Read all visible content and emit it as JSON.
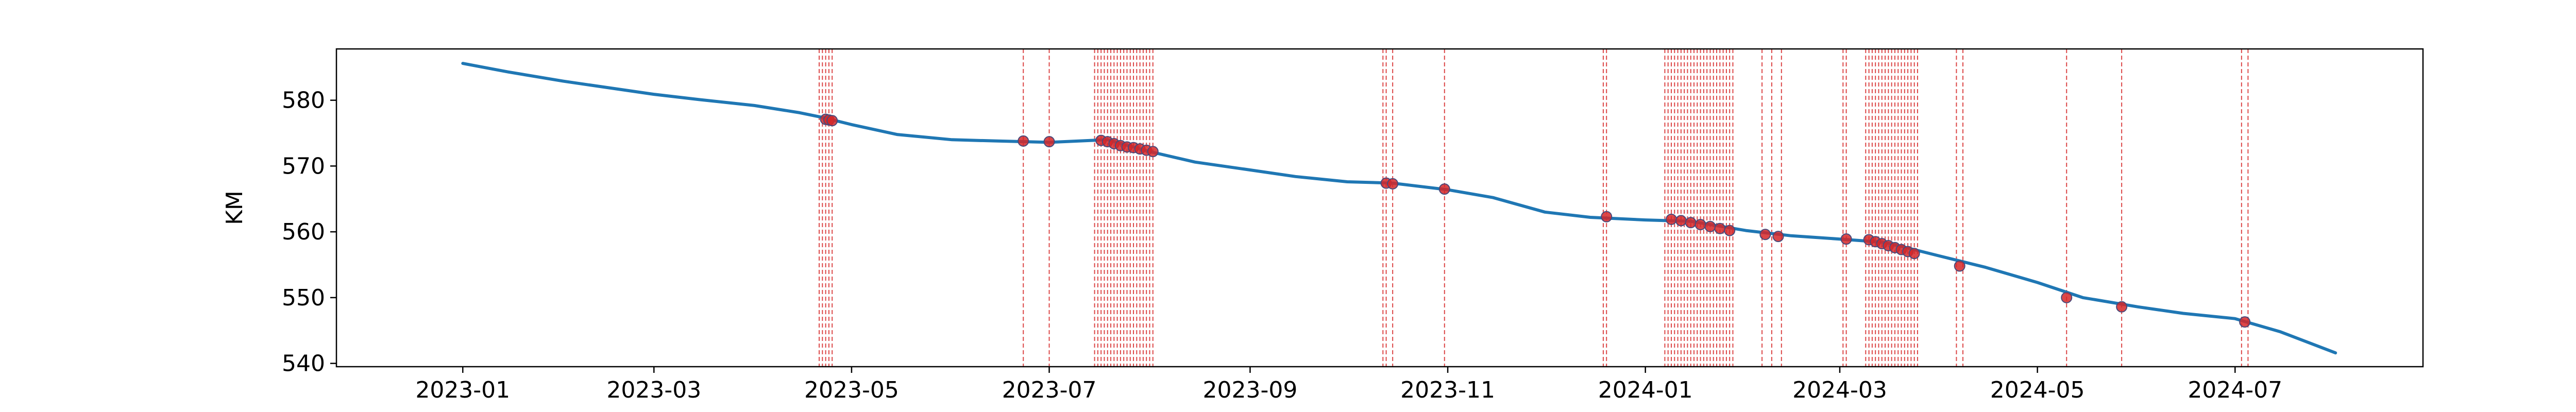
{
  "chart_data": {
    "type": "line",
    "title": "",
    "xlabel": "",
    "ylabel": "KM",
    "xlim": [
      "2022-11-23",
      "2024-08-28"
    ],
    "ylim": [
      539.5,
      587.8
    ],
    "x_ticks": [
      "2023-01",
      "2023-03",
      "2023-05",
      "2023-07",
      "2023-09",
      "2023-11",
      "2024-01",
      "2024-03",
      "2024-05",
      "2024-07"
    ],
    "y_ticks": [
      540,
      550,
      560,
      570,
      580
    ],
    "grid": false,
    "colors": {
      "line": "#1f77b4",
      "markers": "#d62728",
      "event_lines": "#d62728"
    },
    "series": [
      {
        "x": [
          "2023-01-01",
          "2023-01-15",
          "2023-02-01",
          "2023-02-15",
          "2023-03-01",
          "2023-03-15",
          "2023-04-01",
          "2023-04-15",
          "2023-04-22",
          "2023-05-01",
          "2023-05-15",
          "2023-06-01",
          "2023-06-15",
          "2023-07-01",
          "2023-07-19",
          "2023-08-01",
          "2023-08-15",
          "2023-09-01",
          "2023-09-15",
          "2023-10-01",
          "2023-10-15",
          "2023-11-01",
          "2023-11-15",
          "2023-12-01",
          "2023-12-15",
          "2024-01-01",
          "2024-01-15",
          "2024-02-01",
          "2024-02-15",
          "2024-03-01",
          "2024-03-15",
          "2024-04-01",
          "2024-04-15",
          "2024-05-01",
          "2024-05-15",
          "2024-06-01",
          "2024-06-15",
          "2024-07-01",
          "2024-07-15",
          "2024-08-01"
        ],
        "values": [
          585.6,
          584.3,
          582.9,
          581.9,
          580.9,
          580.1,
          579.2,
          578.1,
          577.4,
          576.3,
          574.8,
          574.0,
          573.8,
          573.6,
          574.0,
          572.2,
          570.6,
          569.4,
          568.4,
          567.6,
          567.4,
          566.4,
          565.2,
          563.0,
          562.2,
          561.8,
          561.6,
          560.2,
          559.4,
          558.9,
          558.4,
          556.3,
          554.6,
          552.3,
          550.0,
          548.6,
          547.6,
          546.8,
          544.8,
          541.6
        ]
      }
    ],
    "markers": [
      {
        "x": "2023-04-23",
        "y": 577.1
      },
      {
        "x": "2023-04-24",
        "y": 577.0
      },
      {
        "x": "2023-04-25",
        "y": 576.9
      },
      {
        "x": "2023-06-23",
        "y": 573.8
      },
      {
        "x": "2023-07-01",
        "y": 573.7
      },
      {
        "x": "2023-07-17",
        "y": 573.9
      },
      {
        "x": "2023-07-19",
        "y": 573.7
      },
      {
        "x": "2023-07-21",
        "y": 573.4
      },
      {
        "x": "2023-07-23",
        "y": 573.1
      },
      {
        "x": "2023-07-25",
        "y": 572.9
      },
      {
        "x": "2023-07-27",
        "y": 572.8
      },
      {
        "x": "2023-07-29",
        "y": 572.6
      },
      {
        "x": "2023-07-31",
        "y": 572.4
      },
      {
        "x": "2023-08-02",
        "y": 572.2
      },
      {
        "x": "2023-10-13",
        "y": 567.4
      },
      {
        "x": "2023-10-15",
        "y": 567.3
      },
      {
        "x": "2023-10-31",
        "y": 566.5
      },
      {
        "x": "2023-12-20",
        "y": 562.3
      },
      {
        "x": "2024-01-09",
        "y": 561.9
      },
      {
        "x": "2024-01-12",
        "y": 561.7
      },
      {
        "x": "2024-01-15",
        "y": 561.4
      },
      {
        "x": "2024-01-18",
        "y": 561.1
      },
      {
        "x": "2024-01-21",
        "y": 560.8
      },
      {
        "x": "2024-01-24",
        "y": 560.5
      },
      {
        "x": "2024-01-27",
        "y": 560.2
      },
      {
        "x": "2024-02-07",
        "y": 559.6
      },
      {
        "x": "2024-02-11",
        "y": 559.3
      },
      {
        "x": "2024-03-03",
        "y": 558.9
      },
      {
        "x": "2024-03-10",
        "y": 558.8
      },
      {
        "x": "2024-03-12",
        "y": 558.5
      },
      {
        "x": "2024-03-14",
        "y": 558.2
      },
      {
        "x": "2024-03-16",
        "y": 557.9
      },
      {
        "x": "2024-03-18",
        "y": 557.6
      },
      {
        "x": "2024-03-20",
        "y": 557.3
      },
      {
        "x": "2024-03-22",
        "y": 557.0
      },
      {
        "x": "2024-03-24",
        "y": 556.7
      },
      {
        "x": "2024-04-07",
        "y": 554.8
      },
      {
        "x": "2024-05-10",
        "y": 550.0
      },
      {
        "x": "2024-05-27",
        "y": 548.6
      },
      {
        "x": "2024-07-04",
        "y": 546.3
      }
    ],
    "event_lines": [
      "2023-04-21",
      "2023-04-22",
      "2023-04-23",
      "2023-04-24",
      "2023-04-25",
      "2023-06-23",
      "2023-07-01",
      "2023-07-15",
      "2023-07-16",
      "2023-07-17",
      "2023-07-18",
      "2023-07-19",
      "2023-07-20",
      "2023-07-21",
      "2023-07-22",
      "2023-07-23",
      "2023-07-24",
      "2023-07-25",
      "2023-07-26",
      "2023-07-27",
      "2023-07-28",
      "2023-07-29",
      "2023-07-30",
      "2023-07-31",
      "2023-08-01",
      "2023-08-02",
      "2023-10-12",
      "2023-10-13",
      "2023-10-15",
      "2023-10-31",
      "2023-12-19",
      "2023-12-20",
      "2024-01-07",
      "2024-01-08",
      "2024-01-09",
      "2024-01-10",
      "2024-01-11",
      "2024-01-12",
      "2024-01-13",
      "2024-01-14",
      "2024-01-15",
      "2024-01-16",
      "2024-01-17",
      "2024-01-18",
      "2024-01-19",
      "2024-01-20",
      "2024-01-21",
      "2024-01-22",
      "2024-01-23",
      "2024-01-24",
      "2024-01-25",
      "2024-01-26",
      "2024-01-27",
      "2024-01-28",
      "2024-02-06",
      "2024-02-09",
      "2024-02-12",
      "2024-03-02",
      "2024-03-03",
      "2024-03-09",
      "2024-03-10",
      "2024-03-11",
      "2024-03-12",
      "2024-03-13",
      "2024-03-14",
      "2024-03-15",
      "2024-03-16",
      "2024-03-17",
      "2024-03-18",
      "2024-03-19",
      "2024-03-20",
      "2024-03-21",
      "2024-03-22",
      "2024-03-23",
      "2024-03-24",
      "2024-03-25",
      "2024-04-06",
      "2024-04-08",
      "2024-05-10",
      "2024-05-27",
      "2024-07-03",
      "2024-07-05"
    ]
  }
}
